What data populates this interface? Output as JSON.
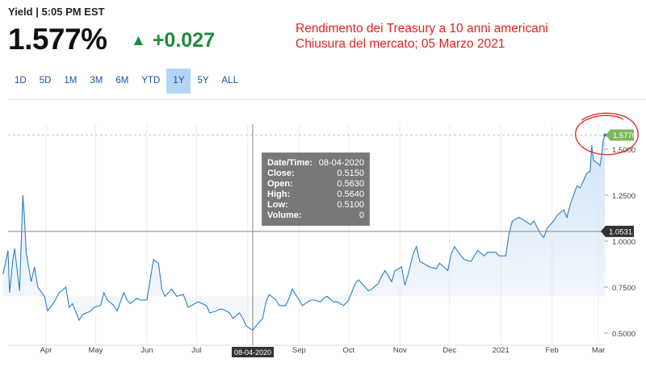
{
  "header": {
    "label": "Yield | 5:05 PM EST",
    "value": "1.577%",
    "change_icon": "triangle-up-icon",
    "change": "+0.027"
  },
  "annotation": {
    "line1": "Rendimento dei Treasury a 10 anni americani",
    "line2": "Chiusura del mercato; 05 Marzo 2021",
    "color": "#e32222"
  },
  "range_tabs": [
    {
      "label": "1D"
    },
    {
      "label": "5D"
    },
    {
      "label": "1M"
    },
    {
      "label": "3M"
    },
    {
      "label": "6M"
    },
    {
      "label": "YTD"
    },
    {
      "label": "1Y",
      "active": true
    },
    {
      "label": "5Y"
    },
    {
      "label": "ALL"
    }
  ],
  "tooltip": {
    "rows": [
      {
        "key": "Date/Time:",
        "value": "08-04-2020"
      },
      {
        "key": "Close:",
        "value": "0.5150"
      },
      {
        "key": "Open:",
        "value": "0.5630"
      },
      {
        "key": "High:",
        "value": "0.5640"
      },
      {
        "key": "Low:",
        "value": "0.5100"
      },
      {
        "key": "Volume:",
        "value": "0"
      }
    ]
  },
  "chart_data": {
    "type": "area",
    "x_tick_labels": [
      "Apr",
      "May",
      "Jun",
      "Jul",
      "Aug",
      "Sep",
      "Oct",
      "Nov",
      "Dec",
      "2021",
      "Feb",
      "Mar"
    ],
    "x_tick_dates": [
      "2020-04-01",
      "2020-05-01",
      "2020-06-01",
      "2020-07-01",
      "2020-08-01",
      "2020-09-01",
      "2020-10-01",
      "2020-11-01",
      "2020-12-01",
      "2021-01-01",
      "2021-02-01",
      "2021-03-01"
    ],
    "y_ticks": [
      0.5,
      0.75,
      1.0,
      1.25,
      1.5
    ],
    "y_tick_labels": [
      "0.5000",
      "0.7500",
      "1.0000",
      "1.2500",
      "1.5000"
    ],
    "ylim": [
      0.5,
      1.5
    ],
    "crosshair": {
      "x_label": "08-04-2020",
      "y_label": "1.0531"
    },
    "last_value_label": "1.5770",
    "line_color": "#2f7dc4",
    "fill_color": "#cfe2f5",
    "series": [
      {
        "points": [
          [
            "2020-03-06",
            0.82
          ],
          [
            "2020-03-09",
            0.95
          ],
          [
            "2020-03-10",
            0.72
          ],
          [
            "2020-03-12",
            0.9
          ],
          [
            "2020-03-13",
            0.96
          ],
          [
            "2020-03-16",
            0.73
          ],
          [
            "2020-03-18",
            1.25
          ],
          [
            "2020-03-19",
            1.12
          ],
          [
            "2020-03-20",
            0.94
          ],
          [
            "2020-03-23",
            0.78
          ],
          [
            "2020-03-25",
            0.86
          ],
          [
            "2020-03-27",
            0.75
          ],
          [
            "2020-03-31",
            0.7
          ],
          [
            "2020-04-02",
            0.62
          ],
          [
            "2020-04-06",
            0.67
          ],
          [
            "2020-04-09",
            0.72
          ],
          [
            "2020-04-13",
            0.75
          ],
          [
            "2020-04-15",
            0.64
          ],
          [
            "2020-04-17",
            0.66
          ],
          [
            "2020-04-21",
            0.57
          ],
          [
            "2020-04-23",
            0.6
          ],
          [
            "2020-04-28",
            0.62
          ],
          [
            "2020-04-30",
            0.64
          ],
          [
            "2020-05-04",
            0.65
          ],
          [
            "2020-05-06",
            0.72
          ],
          [
            "2020-05-08",
            0.68
          ],
          [
            "2020-05-12",
            0.65
          ],
          [
            "2020-05-14",
            0.62
          ],
          [
            "2020-05-18",
            0.72
          ],
          [
            "2020-05-20",
            0.68
          ],
          [
            "2020-05-22",
            0.66
          ],
          [
            "2020-05-26",
            0.69
          ],
          [
            "2020-05-28",
            0.68
          ],
          [
            "2020-06-01",
            0.68
          ],
          [
            "2020-06-03",
            0.79
          ],
          [
            "2020-06-05",
            0.9
          ],
          [
            "2020-06-08",
            0.88
          ],
          [
            "2020-06-10",
            0.74
          ],
          [
            "2020-06-12",
            0.7
          ],
          [
            "2020-06-16",
            0.74
          ],
          [
            "2020-06-19",
            0.7
          ],
          [
            "2020-06-23",
            0.71
          ],
          [
            "2020-06-26",
            0.64
          ],
          [
            "2020-06-30",
            0.66
          ],
          [
            "2020-07-02",
            0.67
          ],
          [
            "2020-07-07",
            0.65
          ],
          [
            "2020-07-09",
            0.61
          ],
          [
            "2020-07-13",
            0.62
          ],
          [
            "2020-07-15",
            0.63
          ],
          [
            "2020-07-17",
            0.63
          ],
          [
            "2020-07-21",
            0.61
          ],
          [
            "2020-07-23",
            0.58
          ],
          [
            "2020-07-27",
            0.61
          ],
          [
            "2020-07-29",
            0.58
          ],
          [
            "2020-07-31",
            0.54
          ],
          [
            "2020-08-04",
            0.515
          ],
          [
            "2020-08-06",
            0.54
          ],
          [
            "2020-08-10",
            0.58
          ],
          [
            "2020-08-12",
            0.67
          ],
          [
            "2020-08-14",
            0.71
          ],
          [
            "2020-08-18",
            0.68
          ],
          [
            "2020-08-20",
            0.65
          ],
          [
            "2020-08-24",
            0.65
          ],
          [
            "2020-08-26",
            0.69
          ],
          [
            "2020-08-28",
            0.74
          ],
          [
            "2020-09-01",
            0.68
          ],
          [
            "2020-09-03",
            0.65
          ],
          [
            "2020-09-08",
            0.68
          ],
          [
            "2020-09-10",
            0.68
          ],
          [
            "2020-09-14",
            0.67
          ],
          [
            "2020-09-16",
            0.69
          ],
          [
            "2020-09-18",
            0.7
          ],
          [
            "2020-09-22",
            0.67
          ],
          [
            "2020-09-24",
            0.67
          ],
          [
            "2020-09-28",
            0.65
          ],
          [
            "2020-10-01",
            0.68
          ],
          [
            "2020-10-05",
            0.77
          ],
          [
            "2020-10-07",
            0.79
          ],
          [
            "2020-10-09",
            0.77
          ],
          [
            "2020-10-13",
            0.73
          ],
          [
            "2020-10-15",
            0.74
          ],
          [
            "2020-10-19",
            0.77
          ],
          [
            "2020-10-21",
            0.81
          ],
          [
            "2020-10-23",
            0.84
          ],
          [
            "2020-10-27",
            0.78
          ],
          [
            "2020-10-29",
            0.84
          ],
          [
            "2020-11-02",
            0.86
          ],
          [
            "2020-11-04",
            0.76
          ],
          [
            "2020-11-06",
            0.82
          ],
          [
            "2020-11-09",
            0.93
          ],
          [
            "2020-11-11",
            0.97
          ],
          [
            "2020-11-13",
            0.89
          ],
          [
            "2020-11-17",
            0.87
          ],
          [
            "2020-11-19",
            0.86
          ],
          [
            "2020-11-23",
            0.85
          ],
          [
            "2020-11-25",
            0.88
          ],
          [
            "2020-11-30",
            0.84
          ],
          [
            "2020-12-02",
            0.93
          ],
          [
            "2020-12-04",
            0.97
          ],
          [
            "2020-12-08",
            0.92
          ],
          [
            "2020-12-10",
            0.9
          ],
          [
            "2020-12-14",
            0.89
          ],
          [
            "2020-12-16",
            0.92
          ],
          [
            "2020-12-18",
            0.95
          ],
          [
            "2020-12-22",
            0.92
          ],
          [
            "2020-12-24",
            0.94
          ],
          [
            "2020-12-29",
            0.94
          ],
          [
            "2020-12-31",
            0.92
          ],
          [
            "2021-01-04",
            0.92
          ],
          [
            "2021-01-06",
            1.04
          ],
          [
            "2021-01-08",
            1.11
          ],
          [
            "2021-01-12",
            1.13
          ],
          [
            "2021-01-14",
            1.12
          ],
          [
            "2021-01-19",
            1.09
          ],
          [
            "2021-01-21",
            1.11
          ],
          [
            "2021-01-25",
            1.04
          ],
          [
            "2021-01-27",
            1.02
          ],
          [
            "2021-01-29",
            1.07
          ],
          [
            "2021-02-02",
            1.11
          ],
          [
            "2021-02-04",
            1.14
          ],
          [
            "2021-02-08",
            1.17
          ],
          [
            "2021-02-10",
            1.13
          ],
          [
            "2021-02-12",
            1.2
          ],
          [
            "2021-02-16",
            1.3
          ],
          [
            "2021-02-18",
            1.29
          ],
          [
            "2021-02-22",
            1.37
          ],
          [
            "2021-02-24",
            1.38
          ],
          [
            "2021-02-25",
            1.52
          ],
          [
            "2021-02-26",
            1.44
          ],
          [
            "2021-03-01",
            1.42
          ],
          [
            "2021-03-02",
            1.41
          ],
          [
            "2021-03-03",
            1.47
          ],
          [
            "2021-03-04",
            1.55
          ],
          [
            "2021-03-05",
            1.577
          ]
        ]
      }
    ]
  }
}
